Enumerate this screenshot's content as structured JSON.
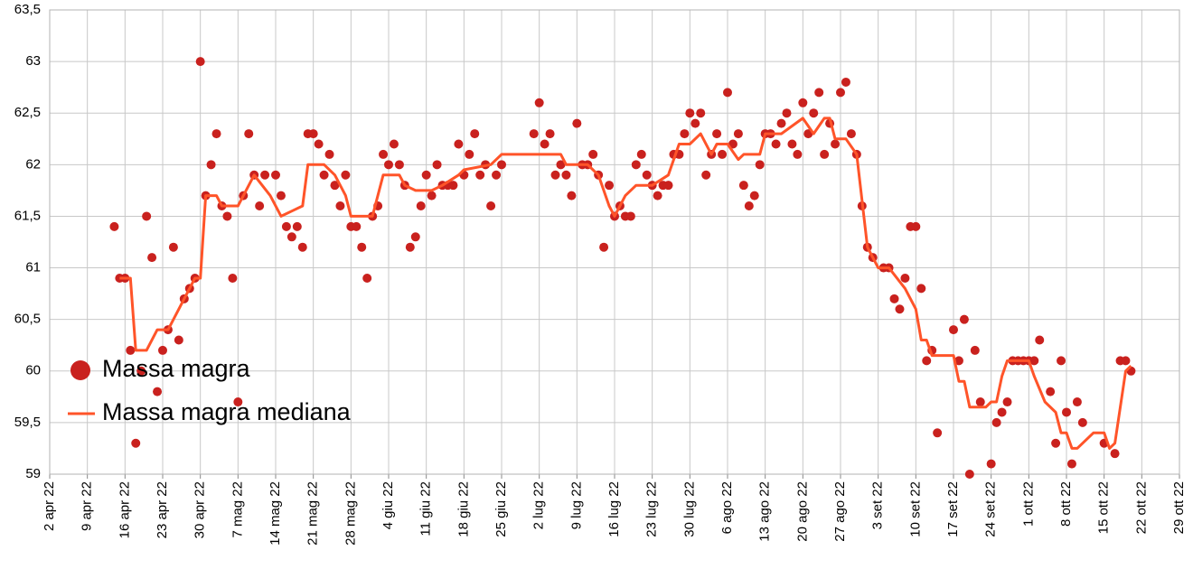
{
  "chart_data": {
    "type": "scatter_line",
    "xlim": [
      "2022-04-02",
      "2022-10-29"
    ],
    "xticks": [
      {
        "value": "2022-04-02",
        "label": "2 apr 22"
      },
      {
        "value": "2022-04-09",
        "label": "9 apr 22"
      },
      {
        "value": "2022-04-16",
        "label": "16 apr 22"
      },
      {
        "value": "2022-04-23",
        "label": "23 apr 22"
      },
      {
        "value": "2022-04-30",
        "label": "30 apr 22"
      },
      {
        "value": "2022-05-07",
        "label": "7 mag 22"
      },
      {
        "value": "2022-05-14",
        "label": "14 mag 22"
      },
      {
        "value": "2022-05-21",
        "label": "21 mag 22"
      },
      {
        "value": "2022-05-28",
        "label": "28 mag 22"
      },
      {
        "value": "2022-06-04",
        "label": "4 giu 22"
      },
      {
        "value": "2022-06-11",
        "label": "11 giu 22"
      },
      {
        "value": "2022-06-18",
        "label": "18 giu 22"
      },
      {
        "value": "2022-06-25",
        "label": "25 giu 22"
      },
      {
        "value": "2022-07-02",
        "label": "2 lug 22"
      },
      {
        "value": "2022-07-09",
        "label": "9 lug 22"
      },
      {
        "value": "2022-07-16",
        "label": "16 lug 22"
      },
      {
        "value": "2022-07-23",
        "label": "23 lug 22"
      },
      {
        "value": "2022-07-30",
        "label": "30 lug 22"
      },
      {
        "value": "2022-08-06",
        "label": "6 ago 22"
      },
      {
        "value": "2022-08-13",
        "label": "13 ago 22"
      },
      {
        "value": "2022-08-20",
        "label": "20 ago 22"
      },
      {
        "value": "2022-08-27",
        "label": "27 ago 22"
      },
      {
        "value": "2022-09-03",
        "label": "3 set 22"
      },
      {
        "value": "2022-09-10",
        "label": "10 set 22"
      },
      {
        "value": "2022-09-17",
        "label": "17 set 22"
      },
      {
        "value": "2022-09-24",
        "label": "24 set 22"
      },
      {
        "value": "2022-10-01",
        "label": "1 ott 22"
      },
      {
        "value": "2022-10-08",
        "label": "8 ott 22"
      },
      {
        "value": "2022-10-15",
        "label": "15 ott 22"
      },
      {
        "value": "2022-10-22",
        "label": "22 ott 22"
      },
      {
        "value": "2022-10-29",
        "label": "29 ott 22"
      }
    ],
    "ylim": [
      59,
      63.5
    ],
    "yticks": [
      59,
      {
        "value": 59.5,
        "label": "59,5"
      },
      60,
      {
        "value": 60.5,
        "label": "60,5"
      },
      61,
      {
        "value": 61.5,
        "label": "61,5"
      },
      62,
      {
        "value": 62.5,
        "label": "62,5"
      },
      63,
      {
        "value": 63.5,
        "label": "63,5"
      }
    ],
    "grid": true,
    "legend": "left",
    "series": [
      {
        "name": "Massa magra",
        "kind": "scatter",
        "color": "#c9211e",
        "x": [
          "2022-04-14",
          "2022-04-15",
          "2022-04-16",
          "2022-04-17",
          "2022-04-18",
          "2022-04-19",
          "2022-04-20",
          "2022-04-21",
          "2022-04-22",
          "2022-04-23",
          "2022-04-24",
          "2022-04-25",
          "2022-04-26",
          "2022-04-27",
          "2022-04-28",
          "2022-04-29",
          "2022-04-30",
          "2022-05-01",
          "2022-05-02",
          "2022-05-03",
          "2022-05-04",
          "2022-05-05",
          "2022-05-06",
          "2022-05-07",
          "2022-05-08",
          "2022-05-09",
          "2022-05-10",
          "2022-05-11",
          "2022-05-12",
          "2022-05-14",
          "2022-05-15",
          "2022-05-16",
          "2022-05-17",
          "2022-05-18",
          "2022-05-19",
          "2022-05-20",
          "2022-05-21",
          "2022-05-22",
          "2022-05-23",
          "2022-05-24",
          "2022-05-25",
          "2022-05-26",
          "2022-05-27",
          "2022-05-28",
          "2022-05-29",
          "2022-05-30",
          "2022-05-31",
          "2022-06-01",
          "2022-06-02",
          "2022-06-03",
          "2022-06-04",
          "2022-06-05",
          "2022-06-06",
          "2022-06-07",
          "2022-06-08",
          "2022-06-09",
          "2022-06-10",
          "2022-06-11",
          "2022-06-12",
          "2022-06-13",
          "2022-06-14",
          "2022-06-15",
          "2022-06-16",
          "2022-06-17",
          "2022-06-18",
          "2022-06-19",
          "2022-06-20",
          "2022-06-21",
          "2022-06-22",
          "2022-06-23",
          "2022-06-24",
          "2022-06-25",
          "2022-07-01",
          "2022-07-02",
          "2022-07-03",
          "2022-07-04",
          "2022-07-05",
          "2022-07-06",
          "2022-07-07",
          "2022-07-08",
          "2022-07-09",
          "2022-07-10",
          "2022-07-11",
          "2022-07-12",
          "2022-07-13",
          "2022-07-14",
          "2022-07-15",
          "2022-07-16",
          "2022-07-17",
          "2022-07-18",
          "2022-07-19",
          "2022-07-20",
          "2022-07-21",
          "2022-07-22",
          "2022-07-23",
          "2022-07-24",
          "2022-07-25",
          "2022-07-26",
          "2022-07-27",
          "2022-07-28",
          "2022-07-29",
          "2022-07-30",
          "2022-07-31",
          "2022-08-01",
          "2022-08-02",
          "2022-08-03",
          "2022-08-04",
          "2022-08-05",
          "2022-08-06",
          "2022-08-07",
          "2022-08-08",
          "2022-08-09",
          "2022-08-10",
          "2022-08-11",
          "2022-08-12",
          "2022-08-13",
          "2022-08-14",
          "2022-08-15",
          "2022-08-16",
          "2022-08-17",
          "2022-08-18",
          "2022-08-19",
          "2022-08-20",
          "2022-08-21",
          "2022-08-22",
          "2022-08-23",
          "2022-08-24",
          "2022-08-25",
          "2022-08-26",
          "2022-08-27",
          "2022-08-28",
          "2022-08-29",
          "2022-08-30",
          "2022-08-31",
          "2022-09-01",
          "2022-09-02",
          "2022-09-04",
          "2022-09-05",
          "2022-09-06",
          "2022-09-07",
          "2022-09-08",
          "2022-09-09",
          "2022-09-10",
          "2022-09-11",
          "2022-09-12",
          "2022-09-13",
          "2022-09-14",
          "2022-09-17",
          "2022-09-18",
          "2022-09-19",
          "2022-09-20",
          "2022-09-21",
          "2022-09-22",
          "2022-09-24",
          "2022-09-25",
          "2022-09-26",
          "2022-09-27",
          "2022-09-28",
          "2022-09-29",
          "2022-09-30",
          "2022-10-01",
          "2022-10-02",
          "2022-10-03",
          "2022-10-05",
          "2022-10-06",
          "2022-10-07",
          "2022-10-08",
          "2022-10-09",
          "2022-10-10",
          "2022-10-11",
          "2022-10-15",
          "2022-10-17",
          "2022-10-18",
          "2022-10-19",
          "2022-10-20"
        ],
        "values": [
          61.4,
          60.9,
          60.9,
          60.2,
          59.3,
          60.0,
          61.5,
          61.1,
          59.8,
          60.2,
          60.4,
          61.2,
          60.3,
          60.7,
          60.8,
          60.9,
          63.0,
          61.7,
          62.0,
          62.3,
          61.6,
          61.5,
          60.9,
          59.7,
          61.7,
          62.3,
          61.9,
          61.6,
          61.9,
          61.9,
          61.7,
          61.4,
          61.3,
          61.4,
          61.2,
          62.3,
          62.3,
          62.2,
          61.9,
          62.1,
          61.8,
          61.6,
          61.9,
          61.4,
          61.4,
          61.2,
          60.9,
          61.5,
          61.6,
          62.1,
          62.0,
          62.2,
          62.0,
          61.8,
          61.2,
          61.3,
          61.6,
          61.9,
          61.7,
          62.0,
          61.8,
          61.8,
          61.8,
          62.2,
          61.9,
          62.1,
          62.3,
          61.9,
          62.0,
          61.6,
          61.9,
          62.0,
          62.3,
          62.6,
          62.2,
          62.3,
          61.9,
          62.0,
          61.9,
          61.7,
          62.4,
          62.0,
          62.0,
          62.1,
          61.9,
          61.2,
          61.8,
          61.5,
          61.6,
          61.5,
          61.5,
          62.0,
          62.1,
          61.9,
          61.8,
          61.7,
          61.8,
          61.8,
          62.1,
          62.1,
          62.3,
          62.5,
          62.4,
          62.5,
          61.9,
          62.1,
          62.3,
          62.1,
          62.7,
          62.2,
          62.3,
          61.8,
          61.6,
          61.7,
          62.0,
          62.3,
          62.3,
          62.2,
          62.4,
          62.5,
          62.2,
          62.1,
          62.6,
          62.3,
          62.5,
          62.7,
          62.1,
          62.4,
          62.2,
          62.7,
          62.8,
          62.3,
          62.1,
          61.6,
          61.2,
          61.1,
          61.0,
          61.0,
          60.7,
          60.6,
          60.9,
          61.4,
          61.4,
          60.8,
          60.1,
          60.2,
          59.4,
          60.4,
          60.1,
          60.5,
          59.0,
          60.2,
          59.7,
          59.1,
          59.5,
          59.6,
          59.7,
          60.1,
          60.1,
          60.1,
          60.1,
          60.1,
          60.3,
          59.8,
          59.3,
          60.1,
          59.6,
          59.1,
          59.7,
          59.5,
          59.3,
          59.2,
          60.1,
          60.1,
          60.0
        ]
      },
      {
        "name": "Massa magra mediana",
        "kind": "line",
        "color": "#ff5429",
        "x": [
          "2022-04-15",
          "2022-04-17",
          "2022-04-18",
          "2022-04-20",
          "2022-04-22",
          "2022-04-24",
          "2022-04-25",
          "2022-04-27",
          "2022-04-29",
          "2022-04-30",
          "2022-05-01",
          "2022-05-03",
          "2022-05-04",
          "2022-05-07",
          "2022-05-08",
          "2022-05-10",
          "2022-05-13",
          "2022-05-15",
          "2022-05-17",
          "2022-05-19",
          "2022-05-20",
          "2022-05-23",
          "2022-05-25",
          "2022-05-27",
          "2022-05-28",
          "2022-06-01",
          "2022-06-03",
          "2022-06-06",
          "2022-06-07",
          "2022-06-09",
          "2022-06-12",
          "2022-06-14",
          "2022-06-17",
          "2022-06-18",
          "2022-06-23",
          "2022-06-25",
          "2022-07-06",
          "2022-07-07",
          "2022-07-11",
          "2022-07-13",
          "2022-07-15",
          "2022-07-16",
          "2022-07-18",
          "2022-07-20",
          "2022-07-23",
          "2022-07-26",
          "2022-07-28",
          "2022-07-30",
          "2022-08-01",
          "2022-08-03",
          "2022-08-04",
          "2022-08-06",
          "2022-08-08",
          "2022-08-09",
          "2022-08-12",
          "2022-08-13",
          "2022-08-16",
          "2022-08-20",
          "2022-08-22",
          "2022-08-24",
          "2022-08-25",
          "2022-08-26",
          "2022-08-28",
          "2022-08-30",
          "2022-09-01",
          "2022-09-03",
          "2022-09-05",
          "2022-09-08",
          "2022-09-10",
          "2022-09-11",
          "2022-09-12",
          "2022-09-13",
          "2022-09-17",
          "2022-09-18",
          "2022-09-19",
          "2022-09-20",
          "2022-09-23",
          "2022-09-24",
          "2022-09-25",
          "2022-09-26",
          "2022-09-27",
          "2022-10-01",
          "2022-10-02",
          "2022-10-04",
          "2022-10-06",
          "2022-10-07",
          "2022-10-08",
          "2022-10-09",
          "2022-10-10",
          "2022-10-13",
          "2022-10-15",
          "2022-10-16",
          "2022-10-17",
          "2022-10-19",
          "2022-10-20"
        ],
        "values": [
          60.9,
          60.9,
          60.2,
          60.2,
          60.4,
          60.4,
          60.5,
          60.7,
          60.9,
          60.9,
          61.7,
          61.7,
          61.6,
          61.6,
          61.7,
          61.9,
          61.7,
          61.5,
          61.55,
          61.6,
          62.0,
          62.0,
          61.9,
          61.7,
          61.5,
          61.5,
          61.9,
          61.9,
          61.8,
          61.75,
          61.75,
          61.8,
          61.9,
          61.95,
          62.0,
          62.1,
          62.1,
          62.0,
          62.0,
          61.9,
          61.6,
          61.5,
          61.7,
          61.8,
          61.8,
          61.9,
          62.2,
          62.2,
          62.3,
          62.1,
          62.2,
          62.2,
          62.05,
          62.1,
          62.1,
          62.3,
          62.3,
          62.45,
          62.3,
          62.45,
          62.45,
          62.25,
          62.25,
          62.1,
          61.2,
          61.0,
          61.0,
          60.8,
          60.6,
          60.3,
          60.3,
          60.15,
          60.15,
          59.9,
          59.9,
          59.65,
          59.65,
          59.7,
          59.7,
          59.95,
          60.1,
          60.1,
          59.95,
          59.7,
          59.6,
          59.4,
          59.4,
          59.25,
          59.25,
          59.4,
          59.4,
          59.25,
          59.3,
          60.0,
          60.05
        ]
      }
    ]
  }
}
